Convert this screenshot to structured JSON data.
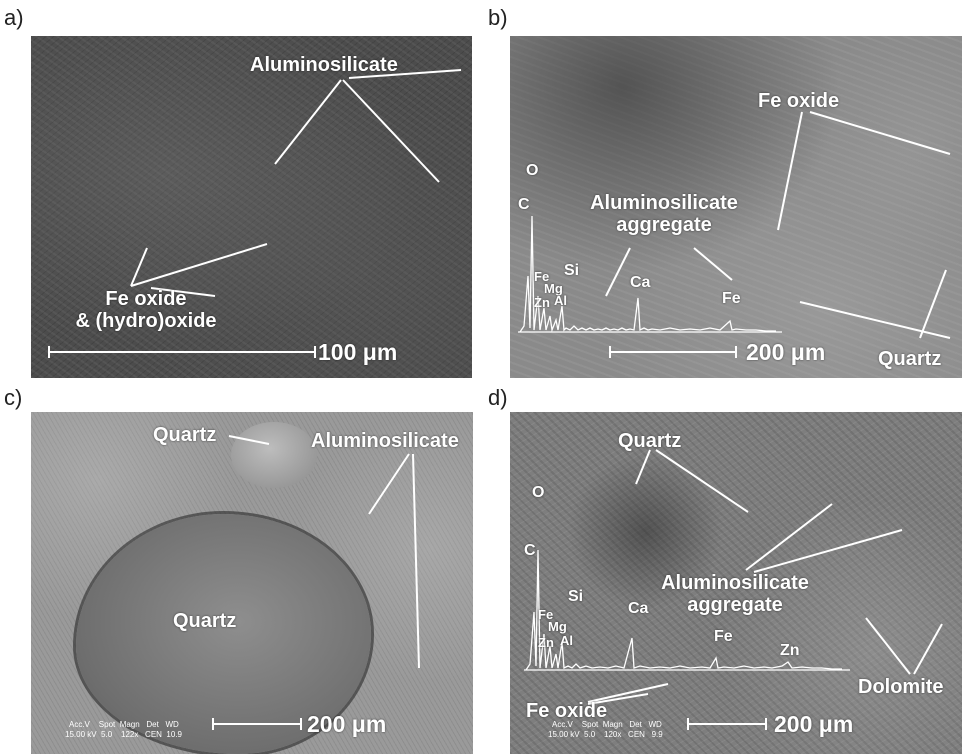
{
  "panels": {
    "a": {
      "label": "a)",
      "annotations": {
        "aluminosilicate": "Aluminosilicate",
        "fe_oxide_line1": "Fe oxide",
        "fe_oxide_line2": "& (hydro)oxide"
      },
      "scale_bar": "100 μm"
    },
    "b": {
      "label": "b)",
      "annotations": {
        "fe_oxide": "Fe oxide",
        "aluminosilicate_line1": "Aluminosilicate",
        "aluminosilicate_line2": "aggregate",
        "quartz": "Quartz"
      },
      "eds_peaks": [
        "O",
        "C",
        "Fe",
        "Mg",
        "Zn",
        "Al",
        "Si",
        "Ca",
        "Fe"
      ],
      "scale_bar": "200 μm"
    },
    "c": {
      "label": "c)",
      "annotations": {
        "quartz_top": "Quartz",
        "aluminosilicate": "Aluminosilicate",
        "quartz_center": "Quartz"
      },
      "sem_info": {
        "line1": "Acc.V    Spot  Magn   Det   WD",
        "line2": "15.00 kV  5.0    122x   CEN  10.9"
      },
      "scale_bar": "200 μm"
    },
    "d": {
      "label": "d)",
      "annotations": {
        "quartz": "Quartz",
        "aluminosilicate_line1": "Aluminosilicate",
        "aluminosilicate_line2": "aggregate",
        "dolomite": "Dolomite",
        "fe_oxide": "Fe oxide"
      },
      "eds_peaks": [
        "O",
        "C",
        "Fe",
        "Mg",
        "Zn",
        "Al",
        "Si",
        "Ca",
        "Fe",
        "Zn"
      ],
      "sem_info": {
        "line1": "Acc.V    Spot  Magn   Det   WD",
        "line2": "15.00 kV  5.0    120x   CEN   9.9"
      },
      "scale_bar": "200 μm"
    }
  }
}
